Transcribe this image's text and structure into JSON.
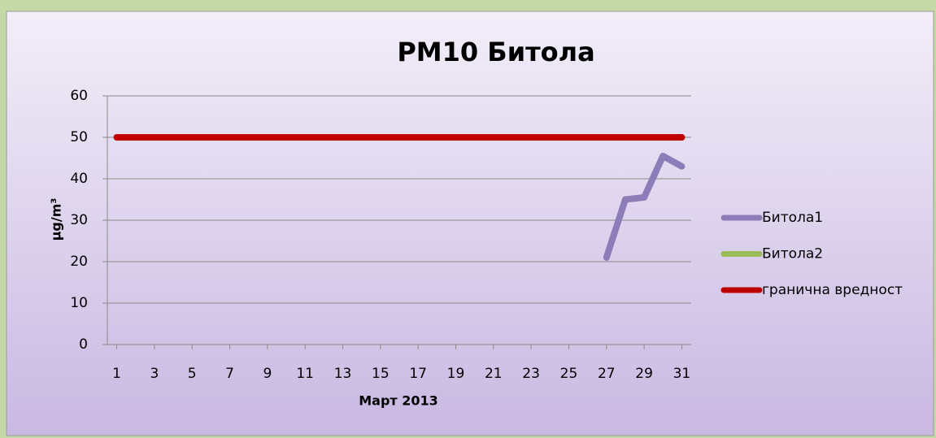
{
  "chart_data": {
    "type": "line",
    "title": "PM10 Битола",
    "xlabel": "Март 2013",
    "ylabel": "µg/m³",
    "x": [
      1,
      2,
      3,
      4,
      5,
      6,
      7,
      8,
      9,
      10,
      11,
      12,
      13,
      14,
      15,
      16,
      17,
      18,
      19,
      20,
      21,
      22,
      23,
      24,
      25,
      26,
      27,
      28,
      29,
      30,
      31
    ],
    "xlim": [
      0.5,
      31.5
    ],
    "xticks": [
      1,
      3,
      5,
      7,
      9,
      11,
      13,
      15,
      17,
      19,
      21,
      23,
      25,
      27,
      29,
      31
    ],
    "ylim": [
      0,
      60
    ],
    "yticks": [
      0,
      10,
      20,
      30,
      40,
      50,
      60
    ],
    "grid": true,
    "legend": "right",
    "series": [
      {
        "name": "Битола1",
        "color": "#8c7cb8",
        "values": [
          null,
          null,
          null,
          null,
          null,
          null,
          null,
          null,
          null,
          null,
          null,
          null,
          null,
          null,
          null,
          null,
          null,
          null,
          null,
          null,
          null,
          null,
          null,
          null,
          null,
          null,
          21,
          35,
          35.5,
          45.5,
          43
        ]
      },
      {
        "name": "Битола2",
        "color": "#9bbb59",
        "values": [
          null,
          null,
          null,
          null,
          null,
          null,
          null,
          null,
          null,
          null,
          null,
          null,
          null,
          null,
          null,
          null,
          null,
          null,
          null,
          null,
          null,
          null,
          null,
          null,
          null,
          null,
          null,
          null,
          null,
          null,
          null
        ]
      },
      {
        "name": "гранична вредност",
        "color": "#c00000",
        "values": [
          50,
          50,
          50,
          50,
          50,
          50,
          50,
          50,
          50,
          50,
          50,
          50,
          50,
          50,
          50,
          50,
          50,
          50,
          50,
          50,
          50,
          50,
          50,
          50,
          50,
          50,
          50,
          50,
          50,
          50,
          50
        ]
      }
    ]
  }
}
